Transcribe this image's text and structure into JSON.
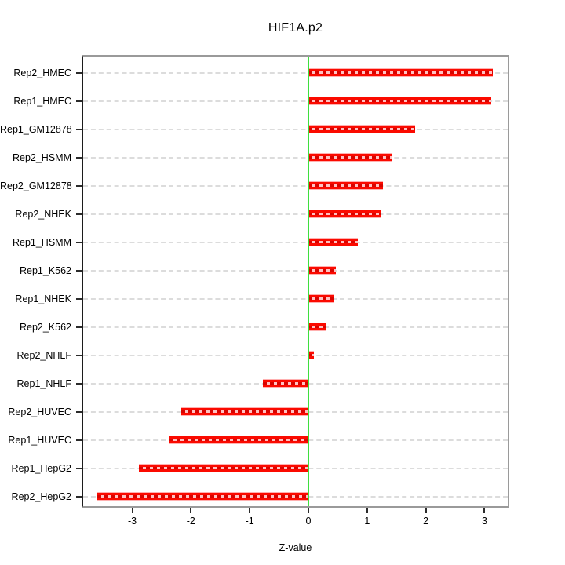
{
  "title": "HIF1A.p2",
  "xlabel": "Z-value",
  "chart_data": {
    "type": "bar",
    "orientation": "horizontal",
    "title": "HIF1A.p2",
    "xlabel": "Z-value",
    "ylabel": "",
    "xlim": [
      -3.85,
      3.42
    ],
    "xticks": [
      -3,
      -2,
      -1,
      0,
      1,
      2,
      3
    ],
    "grid": "horizontal dashed gridline per category",
    "legend": "none",
    "zero_reference_line": 0,
    "categories_top_to_bottom": [
      "Rep2_HMEC",
      "Rep1_HMEC",
      "Rep1_GM12878",
      "Rep2_HSMM",
      "Rep2_GM12878",
      "Rep2_NHEK",
      "Rep1_HSMM",
      "Rep1_K562",
      "Rep1_NHEK",
      "Rep2_K562",
      "Rep2_NHLF",
      "Rep1_NHLF",
      "Rep2_HUVEC",
      "Rep1_HUVEC",
      "Rep1_HepG2",
      "Rep2_HepG2"
    ],
    "values": [
      3.14,
      3.12,
      1.82,
      1.43,
      1.27,
      1.24,
      0.84,
      0.47,
      0.44,
      0.29,
      0.09,
      -0.78,
      -2.17,
      -2.36,
      -2.88,
      -3.6
    ]
  },
  "colors": {
    "bar_fill": "#fb0a00",
    "bar_edge": "#ffb0b0",
    "bar_dash_dark": "#d90400",
    "bar_dash_light": "#ffc2c2",
    "zero_line": "#3fdf3f",
    "gridline": "#dcdcdc",
    "box_border": "#9a9a9a",
    "axis_line": "#1c1c1c",
    "tick": "#2b2b2b",
    "text": "#000000",
    "background": "#ffffff"
  }
}
